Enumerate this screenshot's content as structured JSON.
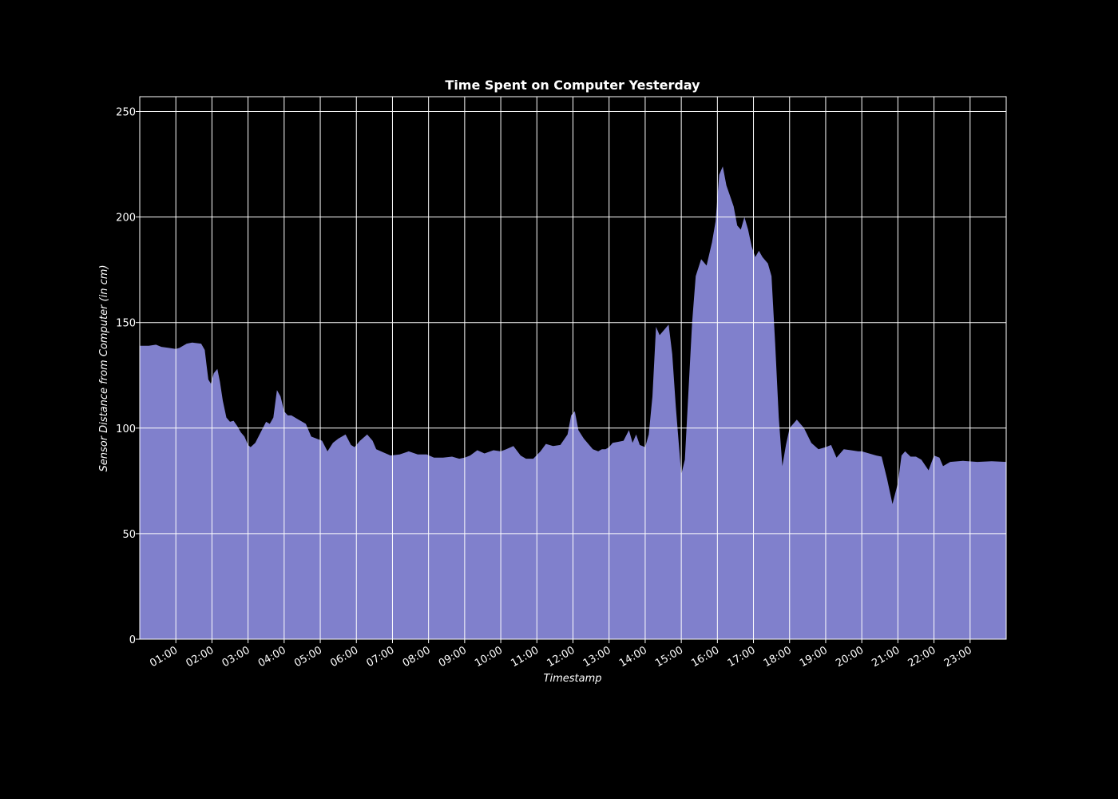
{
  "chart_data": {
    "type": "area",
    "title": "Time Spent on Computer Yesterday",
    "xlabel": "Timestamp",
    "ylabel": "Sensor Distance from Computer (in cm)",
    "x_unit": "hours",
    "xlim": [
      0,
      24
    ],
    "ylim": [
      0,
      257
    ],
    "x_ticks": [
      {
        "value": 1,
        "label": "01:00"
      },
      {
        "value": 2,
        "label": "02:00"
      },
      {
        "value": 3,
        "label": "03:00"
      },
      {
        "value": 4,
        "label": "04:00"
      },
      {
        "value": 5,
        "label": "05:00"
      },
      {
        "value": 6,
        "label": "06:00"
      },
      {
        "value": 7,
        "label": "07:00"
      },
      {
        "value": 8,
        "label": "08:00"
      },
      {
        "value": 9,
        "label": "09:00"
      },
      {
        "value": 10,
        "label": "10:00"
      },
      {
        "value": 11,
        "label": "11:00"
      },
      {
        "value": 12,
        "label": "12:00"
      },
      {
        "value": 13,
        "label": "13:00"
      },
      {
        "value": 14,
        "label": "14:00"
      },
      {
        "value": 15,
        "label": "15:00"
      },
      {
        "value": 16,
        "label": "16:00"
      },
      {
        "value": 17,
        "label": "17:00"
      },
      {
        "value": 18,
        "label": "18:00"
      },
      {
        "value": 19,
        "label": "19:00"
      },
      {
        "value": 20,
        "label": "20:00"
      },
      {
        "value": 21,
        "label": "21:00"
      },
      {
        "value": 22,
        "label": "22:00"
      },
      {
        "value": 23,
        "label": "23:00"
      }
    ],
    "y_ticks": [
      {
        "value": 0,
        "label": "0"
      },
      {
        "value": 50,
        "label": "50"
      },
      {
        "value": 100,
        "label": "100"
      },
      {
        "value": 150,
        "label": "150"
      },
      {
        "value": 200,
        "label": "200"
      },
      {
        "value": 250,
        "label": "250"
      }
    ],
    "grid": true,
    "fill_color": "#8080cc",
    "background_color": "#000000",
    "points": [
      [
        0.0,
        139
      ],
      [
        0.25,
        139
      ],
      [
        0.45,
        139.5
      ],
      [
        0.6,
        138.5
      ],
      [
        0.8,
        138
      ],
      [
        1.0,
        137.5
      ],
      [
        1.1,
        138
      ],
      [
        1.3,
        140
      ],
      [
        1.45,
        140.5
      ],
      [
        1.7,
        140
      ],
      [
        1.8,
        137
      ],
      [
        1.85,
        130
      ],
      [
        1.9,
        123
      ],
      [
        1.97,
        121
      ],
      [
        2.05,
        126
      ],
      [
        2.15,
        128
      ],
      [
        2.22,
        122
      ],
      [
        2.3,
        113
      ],
      [
        2.4,
        105
      ],
      [
        2.5,
        103
      ],
      [
        2.6,
        103.5
      ],
      [
        2.7,
        101
      ],
      [
        2.8,
        98
      ],
      [
        2.9,
        96
      ],
      [
        3.0,
        92
      ],
      [
        3.07,
        91
      ],
      [
        3.2,
        93
      ],
      [
        3.35,
        98
      ],
      [
        3.5,
        103
      ],
      [
        3.6,
        102
      ],
      [
        3.7,
        105
      ],
      [
        3.8,
        118
      ],
      [
        3.9,
        115
      ],
      [
        4.0,
        108
      ],
      [
        4.1,
        106
      ],
      [
        4.2,
        106
      ],
      [
        4.4,
        104
      ],
      [
        4.6,
        102
      ],
      [
        4.75,
        96
      ],
      [
        4.9,
        95
      ],
      [
        5.05,
        94
      ],
      [
        5.2,
        89
      ],
      [
        5.35,
        93
      ],
      [
        5.5,
        95
      ],
      [
        5.7,
        97
      ],
      [
        5.85,
        92
      ],
      [
        5.95,
        91
      ],
      [
        6.1,
        94
      ],
      [
        6.3,
        97
      ],
      [
        6.45,
        94
      ],
      [
        6.55,
        90
      ],
      [
        6.75,
        88.5
      ],
      [
        6.95,
        87
      ],
      [
        7.2,
        87.5
      ],
      [
        7.45,
        89
      ],
      [
        7.7,
        87.5
      ],
      [
        7.95,
        87.5
      ],
      [
        8.15,
        86
      ],
      [
        8.4,
        86
      ],
      [
        8.65,
        86.5
      ],
      [
        8.85,
        85.5
      ],
      [
        9.0,
        86
      ],
      [
        9.15,
        87
      ],
      [
        9.35,
        89.5
      ],
      [
        9.55,
        88
      ],
      [
        9.8,
        89.5
      ],
      [
        10.0,
        89
      ],
      [
        10.15,
        90
      ],
      [
        10.35,
        91.5
      ],
      [
        10.55,
        87
      ],
      [
        10.7,
        85.5
      ],
      [
        10.9,
        85.5
      ],
      [
        11.1,
        89
      ],
      [
        11.25,
        92.5
      ],
      [
        11.45,
        91.5
      ],
      [
        11.65,
        92
      ],
      [
        11.85,
        97
      ],
      [
        11.95,
        106
      ],
      [
        12.05,
        108
      ],
      [
        12.15,
        99
      ],
      [
        12.3,
        95
      ],
      [
        12.45,
        92
      ],
      [
        12.55,
        90
      ],
      [
        12.7,
        89
      ],
      [
        12.8,
        90
      ],
      [
        12.9,
        90
      ],
      [
        13.0,
        91
      ],
      [
        13.1,
        93
      ],
      [
        13.25,
        93.5
      ],
      [
        13.4,
        94
      ],
      [
        13.55,
        99
      ],
      [
        13.65,
        93
      ],
      [
        13.75,
        97
      ],
      [
        13.85,
        92
      ],
      [
        14.0,
        91
      ],
      [
        14.1,
        97
      ],
      [
        14.2,
        115
      ],
      [
        14.3,
        148
      ],
      [
        14.4,
        144
      ],
      [
        14.5,
        146
      ],
      [
        14.65,
        149
      ],
      [
        14.75,
        135
      ],
      [
        14.85,
        110
      ],
      [
        15.0,
        78
      ],
      [
        15.1,
        85
      ],
      [
        15.2,
        118
      ],
      [
        15.3,
        150
      ],
      [
        15.4,
        172
      ],
      [
        15.55,
        180
      ],
      [
        15.7,
        177
      ],
      [
        15.85,
        188
      ],
      [
        15.95,
        198
      ],
      [
        16.05,
        220
      ],
      [
        16.15,
        224
      ],
      [
        16.25,
        215
      ],
      [
        16.35,
        210
      ],
      [
        16.45,
        205
      ],
      [
        16.55,
        196
      ],
      [
        16.65,
        194
      ],
      [
        16.75,
        200
      ],
      [
        16.85,
        194
      ],
      [
        16.95,
        186
      ],
      [
        17.05,
        181
      ],
      [
        17.15,
        184
      ],
      [
        17.25,
        181
      ],
      [
        17.4,
        178
      ],
      [
        17.5,
        172
      ],
      [
        17.6,
        140
      ],
      [
        17.7,
        105
      ],
      [
        17.8,
        82
      ],
      [
        17.9,
        92
      ],
      [
        18.0,
        100
      ],
      [
        18.2,
        104
      ],
      [
        18.4,
        100
      ],
      [
        18.6,
        93
      ],
      [
        18.8,
        90
      ],
      [
        19.0,
        91
      ],
      [
        19.15,
        92
      ],
      [
        19.3,
        86
      ],
      [
        19.5,
        90
      ],
      [
        19.7,
        89.5
      ],
      [
        19.9,
        89
      ],
      [
        20.0,
        89
      ],
      [
        20.2,
        88
      ],
      [
        20.4,
        87
      ],
      [
        20.55,
        86.5
      ],
      [
        20.7,
        76
      ],
      [
        20.85,
        64
      ],
      [
        21.0,
        74
      ],
      [
        21.1,
        87
      ],
      [
        21.2,
        89
      ],
      [
        21.35,
        86.5
      ],
      [
        21.5,
        86.5
      ],
      [
        21.65,
        85
      ],
      [
        21.85,
        80
      ],
      [
        22.0,
        87
      ],
      [
        22.15,
        86
      ],
      [
        22.25,
        82
      ],
      [
        22.45,
        84
      ],
      [
        22.8,
        84.5
      ],
      [
        23.2,
        84
      ],
      [
        23.6,
        84.3
      ],
      [
        24.0,
        84
      ]
    ]
  }
}
